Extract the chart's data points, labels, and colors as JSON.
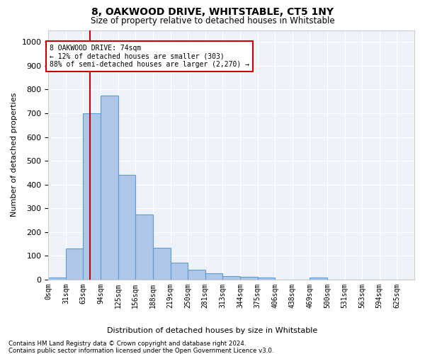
{
  "title": "8, OAKWOOD DRIVE, WHITSTABLE, CT5 1NY",
  "subtitle": "Size of property relative to detached houses in Whitstable",
  "xlabel": "Distribution of detached houses by size in Whitstable",
  "ylabel": "Number of detached properties",
  "bar_labels": [
    "0sqm",
    "31sqm",
    "63sqm",
    "94sqm",
    "125sqm",
    "156sqm",
    "188sqm",
    "219sqm",
    "250sqm",
    "281sqm",
    "313sqm",
    "344sqm",
    "375sqm",
    "406sqm",
    "438sqm",
    "469sqm",
    "500sqm",
    "531sqm",
    "563sqm",
    "594sqm",
    "625sqm"
  ],
  "bar_values": [
    8,
    130,
    700,
    775,
    440,
    275,
    135,
    70,
    40,
    27,
    15,
    12,
    10,
    0,
    0,
    10,
    0,
    0,
    0,
    0,
    0
  ],
  "bar_color": "#aec6e8",
  "bar_edge_color": "#5a9fd4",
  "red_line_x": 74,
  "bin_width": 31,
  "ylim": [
    0,
    1050
  ],
  "yticks": [
    0,
    100,
    200,
    300,
    400,
    500,
    600,
    700,
    800,
    900,
    1000
  ],
  "annotation_title": "8 OAKWOOD DRIVE: 74sqm",
  "annotation_line1": "← 12% of detached houses are smaller (303)",
  "annotation_line2": "88% of semi-detached houses are larger (2,270) →",
  "annotation_box_color": "#ffffff",
  "annotation_box_edge": "#cc0000",
  "red_line_color": "#cc0000",
  "background_color": "#eef2f8",
  "grid_color": "#ffffff",
  "footer1": "Contains HM Land Registry data © Crown copyright and database right 2024.",
  "footer2": "Contains public sector information licensed under the Open Government Licence v3.0."
}
